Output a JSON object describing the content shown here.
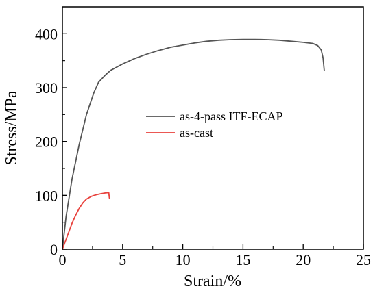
{
  "chart_data": {
    "type": "line",
    "title": "",
    "xlabel": "Strain/%",
    "ylabel": "Stress/MPa",
    "xlim": [
      0,
      25
    ],
    "ylim": [
      0,
      450
    ],
    "xticks": [
      0,
      5,
      10,
      15,
      20,
      25
    ],
    "yticks": [
      0,
      100,
      200,
      300,
      400
    ],
    "grid": false,
    "legend_position": "center-right",
    "series": [
      {
        "name": "as-4-pass ITF-ECAP",
        "color": "#555555",
        "points": [
          [
            0,
            0
          ],
          [
            0.3,
            60
          ],
          [
            0.8,
            130
          ],
          [
            1.4,
            195
          ],
          [
            2.0,
            250
          ],
          [
            2.6,
            290
          ],
          [
            3.0,
            310
          ],
          [
            3.5,
            322
          ],
          [
            4.0,
            332
          ],
          [
            5.0,
            344
          ],
          [
            6.0,
            354
          ],
          [
            7.0,
            362
          ],
          [
            8.0,
            369
          ],
          [
            9.0,
            375
          ],
          [
            10.0,
            379
          ],
          [
            11.0,
            383
          ],
          [
            12.0,
            386
          ],
          [
            13.0,
            388
          ],
          [
            14.0,
            389
          ],
          [
            15.0,
            389.5
          ],
          [
            16.0,
            389.5
          ],
          [
            17.0,
            389
          ],
          [
            18.0,
            388
          ],
          [
            19.0,
            386
          ],
          [
            20.0,
            384
          ],
          [
            20.8,
            382
          ],
          [
            21.2,
            378
          ],
          [
            21.5,
            370
          ],
          [
            21.65,
            355
          ],
          [
            21.75,
            332
          ]
        ]
      },
      {
        "name": "as-cast",
        "color": "#e8413c",
        "points": [
          [
            0,
            0
          ],
          [
            0.2,
            12
          ],
          [
            0.5,
            30
          ],
          [
            0.8,
            48
          ],
          [
            1.1,
            63
          ],
          [
            1.4,
            76
          ],
          [
            1.7,
            86
          ],
          [
            2.0,
            93
          ],
          [
            2.4,
            98
          ],
          [
            2.8,
            101
          ],
          [
            3.2,
            103
          ],
          [
            3.6,
            104.5
          ],
          [
            3.85,
            105
          ],
          [
            3.9,
            95
          ]
        ]
      }
    ]
  }
}
